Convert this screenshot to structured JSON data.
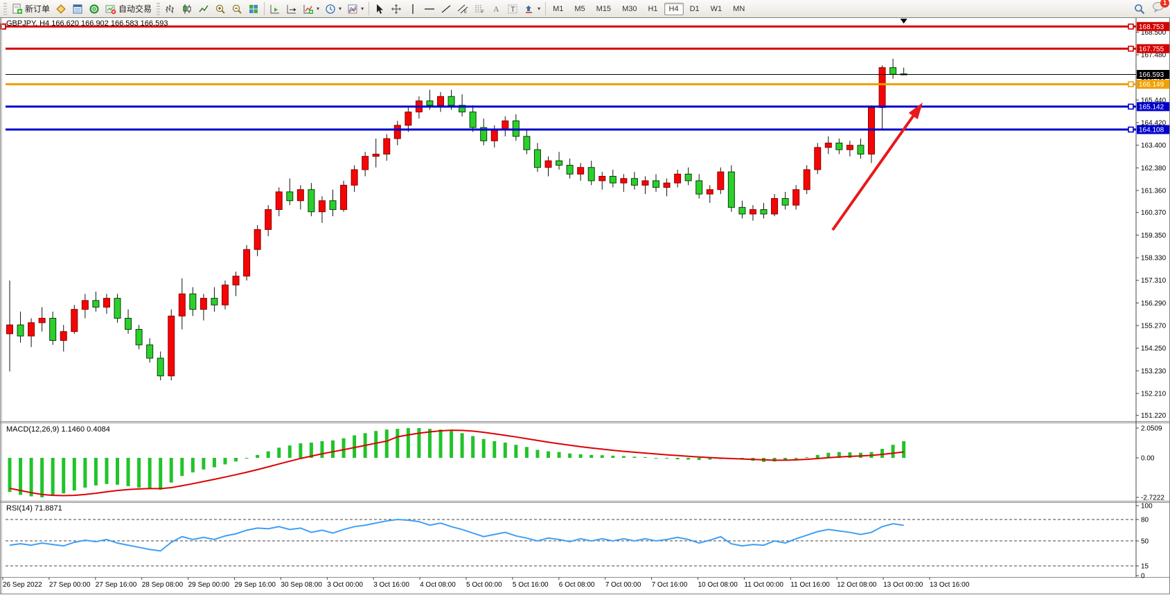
{
  "toolbar": {
    "new_order_label": "新订单",
    "auto_trading_label": "自动交易",
    "timeframes": [
      "M1",
      "M5",
      "M15",
      "M30",
      "H1",
      "H4",
      "D1",
      "W1",
      "MN"
    ],
    "active_timeframe": "H4",
    "notification_count": "1",
    "icons": {
      "new_order": "document-green-plus",
      "chart_profile": "gold-layers",
      "market_watch": "blue-window",
      "navigator": "green-globe",
      "auto_trading": "chart-red-dot",
      "bar_chart": "ohlc-bars",
      "candlestick_chart": "candle",
      "line_chart": "polyline",
      "zoom_in": "magnifier-plus",
      "zoom_out": "magnifier-minus",
      "tile_windows": "colored-grid",
      "auto_scroll": "chart-green-arrow",
      "chart_shift": "chart-shift-arrow",
      "indicators": "chart-plus-dropdown",
      "periods": "clock-dropdown",
      "templates": "template-dropdown",
      "cursor": "arrow-pointer",
      "crosshair": "crosshair",
      "vertical_line": "vline",
      "horizontal_line": "hline",
      "trendline": "diagonal",
      "equidistant_channel": "double-diagonal-E",
      "fibonacci": "fibo-F",
      "text": "letter-A",
      "text_label": "boxed-T",
      "arrows_tool": "arrow-shapes-dropdown",
      "search": "magnifier",
      "notifications": "chat-bubble"
    }
  },
  "chart": {
    "title": "GBPJPY, H4 166.620 166.902 166.583 166.593",
    "macd_label": "MACD(12,26,9)",
    "macd_values": "1.1460 0.4084",
    "rsi_label": "RSI(14)",
    "rsi_value": "71.8871"
  },
  "chart_data": [
    {
      "type": "candlestick",
      "symbol": "GBPJPY",
      "timeframe": "H4",
      "ohlc_display": {
        "open": "166.620",
        "high": "166.902",
        "low": "166.583",
        "close": "166.593"
      },
      "up_color": "#f50505",
      "down_color": "#2bd12b",
      "wick_color": "#111111",
      "ylim": [
        150.9,
        169.1
      ],
      "grid": false,
      "y_axis_ticks": [
        "168.500",
        "167.480",
        "166.460",
        "165.440",
        "164.420",
        "163.400",
        "162.380",
        "161.360",
        "160.370",
        "159.350",
        "158.330",
        "157.310",
        "156.290",
        "155.270",
        "154.250",
        "153.230",
        "152.210",
        "151.220"
      ],
      "x_labels": [
        "26 Sep 2022",
        "27 Sep 00:00",
        "27 Sep 16:00",
        "28 Sep 08:00",
        "29 Sep 00:00",
        "29 Sep 16:00",
        "30 Sep 08:00",
        "3 Oct 00:00",
        "3 Oct 16:00",
        "4 Oct 08:00",
        "5 Oct 00:00",
        "5 Oct 16:00",
        "6 Oct 08:00",
        "7 Oct 00:00",
        "7 Oct 16:00",
        "10 Oct 08:00",
        "11 Oct 00:00",
        "11 Oct 16:00",
        "12 Oct 08:00",
        "13 Oct 00:00",
        "13 Oct 16:00"
      ],
      "horizontal_lines": [
        {
          "price": 168.753,
          "label": "168.753",
          "color": "#d60000"
        },
        {
          "price": 167.755,
          "label": "167.755",
          "color": "#d60000"
        },
        {
          "price": 166.149,
          "label": "166.149",
          "color": "#f0a000"
        },
        {
          "price": 165.142,
          "label": "165.142",
          "color": "#0000cd"
        },
        {
          "price": 164.108,
          "label": "164.108",
          "color": "#0000cd"
        }
      ],
      "current_price": {
        "value": 166.593,
        "label": "166.593",
        "color": "#000000"
      },
      "arrow_annotation": {
        "from": [
          1202,
          307
        ],
        "to": [
          1332,
          123
        ],
        "color": "#e8191c"
      },
      "candles": [
        [
          154.9,
          157.3,
          153.2,
          155.3
        ],
        [
          155.3,
          155.9,
          154.5,
          154.8
        ],
        [
          154.8,
          155.6,
          154.3,
          155.4
        ],
        [
          155.4,
          156.1,
          155.0,
          155.6
        ],
        [
          155.6,
          155.9,
          154.4,
          154.6
        ],
        [
          154.6,
          155.3,
          154.1,
          155.0
        ],
        [
          155.0,
          156.2,
          154.9,
          156.0
        ],
        [
          156.0,
          156.7,
          155.6,
          156.4
        ],
        [
          156.4,
          156.8,
          155.9,
          156.1
        ],
        [
          156.1,
          156.7,
          155.8,
          156.5
        ],
        [
          156.5,
          156.7,
          155.4,
          155.6
        ],
        [
          155.6,
          156.0,
          154.9,
          155.1
        ],
        [
          155.1,
          155.3,
          154.2,
          154.4
        ],
        [
          154.4,
          154.7,
          153.6,
          153.8
        ],
        [
          153.8,
          154.1,
          152.8,
          153.0
        ],
        [
          153.0,
          156.0,
          152.8,
          155.7
        ],
        [
          155.7,
          157.4,
          155.1,
          156.7
        ],
        [
          156.7,
          157.0,
          155.7,
          156.0
        ],
        [
          156.0,
          156.7,
          155.5,
          156.5
        ],
        [
          156.5,
          157.0,
          155.9,
          156.2
        ],
        [
          156.2,
          157.3,
          156.0,
          157.1
        ],
        [
          157.1,
          157.7,
          156.6,
          157.5
        ],
        [
          157.5,
          158.9,
          157.3,
          158.7
        ],
        [
          158.7,
          159.8,
          158.4,
          159.6
        ],
        [
          159.6,
          160.7,
          159.3,
          160.5
        ],
        [
          160.5,
          161.5,
          160.2,
          161.3
        ],
        [
          161.3,
          161.9,
          160.7,
          160.9
        ],
        [
          160.9,
          161.6,
          160.5,
          161.4
        ],
        [
          161.4,
          161.7,
          160.2,
          160.4
        ],
        [
          160.4,
          161.1,
          159.9,
          160.9
        ],
        [
          160.9,
          161.4,
          160.2,
          160.5
        ],
        [
          160.5,
          161.8,
          160.4,
          161.6
        ],
        [
          161.6,
          162.5,
          161.3,
          162.3
        ],
        [
          162.3,
          163.1,
          162.0,
          162.9
        ],
        [
          162.9,
          163.7,
          162.4,
          163.0
        ],
        [
          163.0,
          163.9,
          162.7,
          163.7
        ],
        [
          163.7,
          164.5,
          163.4,
          164.3
        ],
        [
          164.3,
          165.1,
          164.0,
          164.9
        ],
        [
          164.9,
          165.6,
          164.6,
          165.4
        ],
        [
          165.4,
          165.9,
          165.0,
          165.2
        ],
        [
          165.2,
          165.8,
          164.9,
          165.6
        ],
        [
          165.6,
          165.9,
          165.0,
          165.2
        ],
        [
          165.2,
          165.7,
          164.7,
          164.9
        ],
        [
          164.9,
          165.2,
          164.0,
          164.2
        ],
        [
          164.2,
          164.6,
          163.4,
          163.6
        ],
        [
          163.6,
          164.3,
          163.3,
          164.1
        ],
        [
          164.1,
          164.7,
          163.8,
          164.5
        ],
        [
          164.5,
          164.8,
          163.6,
          163.8
        ],
        [
          163.8,
          164.1,
          163.0,
          163.2
        ],
        [
          163.2,
          163.5,
          162.2,
          162.4
        ],
        [
          162.4,
          162.9,
          162.0,
          162.7
        ],
        [
          162.7,
          163.1,
          162.3,
          162.5
        ],
        [
          162.5,
          162.8,
          161.9,
          162.1
        ],
        [
          162.1,
          162.6,
          161.8,
          162.4
        ],
        [
          162.4,
          162.7,
          161.6,
          161.8
        ],
        [
          161.8,
          162.2,
          161.4,
          162.0
        ],
        [
          162.0,
          162.3,
          161.5,
          161.7
        ],
        [
          161.7,
          162.1,
          161.3,
          161.9
        ],
        [
          161.9,
          162.2,
          161.4,
          161.6
        ],
        [
          161.6,
          162.0,
          161.2,
          161.8
        ],
        [
          161.8,
          162.1,
          161.3,
          161.5
        ],
        [
          161.5,
          161.9,
          161.1,
          161.7
        ],
        [
          161.7,
          162.3,
          161.5,
          162.1
        ],
        [
          162.1,
          162.4,
          161.6,
          161.8
        ],
        [
          161.8,
          162.1,
          161.0,
          161.2
        ],
        [
          161.2,
          161.6,
          160.8,
          161.4
        ],
        [
          161.4,
          162.4,
          161.2,
          162.2
        ],
        [
          162.2,
          162.5,
          160.4,
          160.6
        ],
        [
          160.6,
          160.9,
          160.1,
          160.3
        ],
        [
          160.3,
          160.7,
          160.0,
          160.5
        ],
        [
          160.5,
          160.8,
          160.1,
          160.3
        ],
        [
          160.3,
          161.2,
          160.2,
          161.0
        ],
        [
          161.0,
          161.3,
          160.5,
          160.7
        ],
        [
          160.7,
          161.6,
          160.5,
          161.4
        ],
        [
          161.4,
          162.5,
          161.2,
          162.3
        ],
        [
          162.3,
          163.5,
          162.1,
          163.3
        ],
        [
          163.3,
          163.8,
          163.0,
          163.5
        ],
        [
          163.5,
          163.7,
          163.0,
          163.2
        ],
        [
          163.2,
          163.6,
          162.9,
          163.4
        ],
        [
          163.4,
          163.7,
          162.8,
          163.0
        ],
        [
          163.0,
          165.2,
          162.6,
          165.1
        ],
        [
          165.1,
          167.0,
          164.1,
          166.9
        ],
        [
          166.9,
          167.3,
          166.4,
          166.6
        ],
        [
          166.62,
          166.902,
          166.583,
          166.593
        ]
      ]
    },
    {
      "type": "bar",
      "label": "MACD(12,26,9)",
      "values_display": "1.1460 0.4084",
      "axis_labels": [
        "2.0509",
        "0.00",
        "-2.7222"
      ],
      "ylim": [
        -2.7222,
        2.0509
      ],
      "histogram_color": "#22c32a",
      "signal_color": "#dd0000",
      "histogram": [
        -2.35,
        -2.55,
        -2.65,
        -2.72,
        -2.6,
        -2.45,
        -2.25,
        -2.05,
        -1.9,
        -1.8,
        -1.85,
        -1.95,
        -2.05,
        -2.15,
        -2.2,
        -1.7,
        -1.25,
        -1.0,
        -0.8,
        -0.65,
        -0.45,
        -0.25,
        -0.05,
        0.2,
        0.45,
        0.7,
        0.85,
        1.0,
        1.05,
        1.15,
        1.2,
        1.35,
        1.55,
        1.7,
        1.85,
        1.95,
        2.0,
        2.05,
        2.05,
        2.0,
        1.95,
        1.85,
        1.7,
        1.5,
        1.3,
        1.15,
        1.05,
        0.9,
        0.75,
        0.55,
        0.45,
        0.4,
        0.3,
        0.25,
        0.2,
        0.18,
        0.15,
        0.12,
        0.08,
        0.05,
        0.0,
        -0.05,
        -0.1,
        -0.12,
        -0.15,
        -0.12,
        -0.08,
        -0.05,
        -0.1,
        -0.2,
        -0.28,
        -0.25,
        -0.18,
        -0.08,
        0.05,
        0.2,
        0.35,
        0.4,
        0.38,
        0.35,
        0.4,
        0.62,
        0.9,
        1.146
      ],
      "signal": [
        -2.1,
        -2.25,
        -2.4,
        -2.52,
        -2.58,
        -2.6,
        -2.58,
        -2.52,
        -2.44,
        -2.34,
        -2.25,
        -2.18,
        -2.14,
        -2.12,
        -2.12,
        -2.05,
        -1.92,
        -1.78,
        -1.63,
        -1.48,
        -1.32,
        -1.16,
        -0.99,
        -0.81,
        -0.62,
        -0.42,
        -0.23,
        -0.04,
        0.12,
        0.28,
        0.42,
        0.56,
        0.71,
        0.86,
        1.01,
        1.15,
        1.45,
        1.58,
        1.7,
        1.79,
        1.86,
        1.9,
        1.89,
        1.84,
        1.76,
        1.66,
        1.55,
        1.44,
        1.32,
        1.2,
        1.08,
        0.97,
        0.87,
        0.77,
        0.68,
        0.6,
        0.52,
        0.45,
        0.39,
        0.33,
        0.27,
        0.21,
        0.16,
        0.11,
        0.06,
        0.02,
        -0.02,
        -0.05,
        -0.08,
        -0.11,
        -0.14,
        -0.16,
        -0.16,
        -0.14,
        -0.1,
        -0.05,
        0.01,
        0.06,
        0.1,
        0.13,
        0.17,
        0.24,
        0.32,
        0.408
      ]
    },
    {
      "type": "line",
      "label": "RSI(14)",
      "value_display": "71.8871",
      "axis_labels": [
        "100",
        "80",
        "50",
        "15",
        "0"
      ],
      "ylim": [
        0,
        100
      ],
      "levels": [
        80,
        50,
        15
      ],
      "color": "#3f9ff5",
      "values": [
        44,
        46,
        44,
        47,
        45,
        43,
        48,
        51,
        49,
        52,
        47,
        44,
        41,
        38,
        36,
        48,
        56,
        52,
        55,
        52,
        57,
        60,
        65,
        68,
        67,
        70,
        66,
        68,
        62,
        65,
        61,
        66,
        70,
        72,
        75,
        78,
        80,
        79,
        77,
        72,
        75,
        70,
        66,
        61,
        56,
        59,
        62,
        57,
        54,
        50,
        54,
        52,
        49,
        53,
        50,
        53,
        50,
        53,
        50,
        53,
        50,
        52,
        55,
        52,
        47,
        51,
        56,
        46,
        43,
        45,
        44,
        50,
        47,
        53,
        58,
        63,
        66,
        64,
        62,
        59,
        62,
        70,
        74,
        71.89
      ]
    }
  ]
}
